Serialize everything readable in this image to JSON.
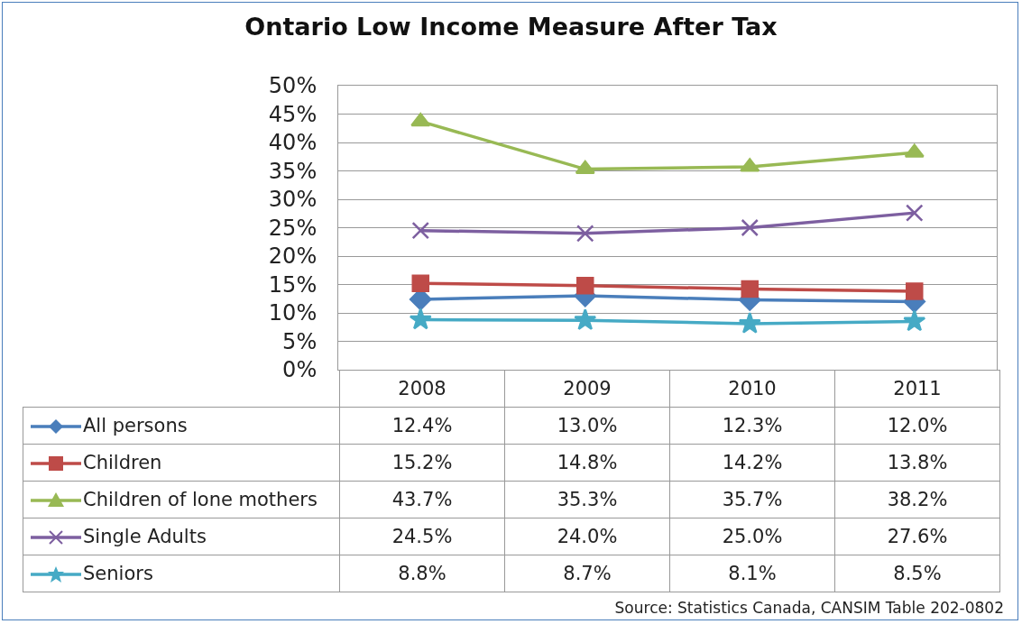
{
  "chart_data": {
    "type": "line",
    "title": "Ontario Low Income Measure After Tax",
    "categories": [
      "2008",
      "2009",
      "2010",
      "2011"
    ],
    "series": [
      {
        "name": "All persons",
        "color": "#4a7ebb",
        "marker": "diamond",
        "values": [
          12.4,
          13.0,
          12.3,
          12.0
        ],
        "value_labels": [
          "12.4%",
          "13.0%",
          "12.3%",
          "12.0%"
        ]
      },
      {
        "name": "Children",
        "color": "#be4b48",
        "marker": "square",
        "values": [
          15.2,
          14.8,
          14.2,
          13.8
        ],
        "value_labels": [
          "15.2%",
          "14.8%",
          "14.2%",
          "13.8%"
        ]
      },
      {
        "name": "Children of lone mothers",
        "color": "#98b954",
        "marker": "triangle",
        "values": [
          43.7,
          35.3,
          35.7,
          38.2
        ],
        "value_labels": [
          "43.7%",
          "35.3%",
          "35.7%",
          "38.2%"
        ]
      },
      {
        "name": "Single Adults",
        "color": "#7d5fa0",
        "marker": "cross",
        "values": [
          24.5,
          24.0,
          25.0,
          27.6
        ],
        "value_labels": [
          "24.5%",
          "24.0%",
          "25.0%",
          "27.6%"
        ]
      },
      {
        "name": "Seniors",
        "color": "#46aac5",
        "marker": "star",
        "values": [
          8.8,
          8.7,
          8.1,
          8.5
        ],
        "value_labels": [
          "8.8%",
          "8.7%",
          "8.1%",
          "8.5%"
        ]
      }
    ],
    "ylim": [
      0,
      50
    ],
    "yticks": [
      {
        "value": 0,
        "label": "0%"
      },
      {
        "value": 5,
        "label": "5%"
      },
      {
        "value": 10,
        "label": "10%"
      },
      {
        "value": 15,
        "label": "15%"
      },
      {
        "value": 20,
        "label": "20%"
      },
      {
        "value": 25,
        "label": "25%"
      },
      {
        "value": 30,
        "label": "30%"
      },
      {
        "value": 35,
        "label": "35%"
      },
      {
        "value": 40,
        "label": "40%"
      },
      {
        "value": 45,
        "label": "45%"
      },
      {
        "value": 50,
        "label": "50%"
      }
    ],
    "grid": "y",
    "legend": "bottom",
    "tick_labels": "y",
    "line_style": "solid",
    "annotations": [
      "Source: Statistics Canada, CANSIM Table 202-0802"
    ]
  }
}
